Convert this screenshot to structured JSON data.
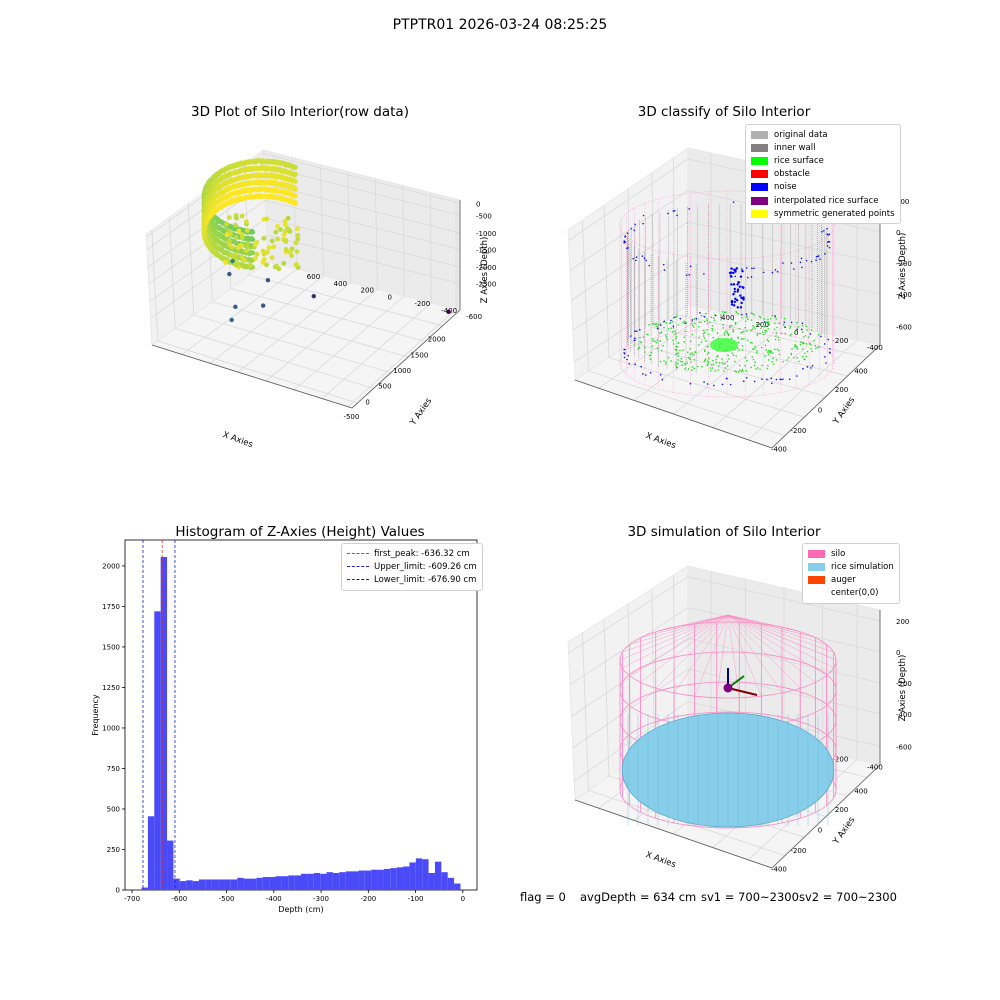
{
  "figure": {
    "title": "PTPTR01 2026-03-24 08:25:25",
    "footer": {
      "flag": "flag = 0",
      "avg_depth": "avgDepth = 634 cm",
      "sv1": "sv1 = 700~2300",
      "sv2": "sv2 = 700~2300"
    }
  },
  "chart_data": [
    {
      "type": "scatter",
      "title": "3D Plot of Silo Interior(row data)",
      "xlabel": "X Axies",
      "ylabel": "Y Axies",
      "zlabel": "Z Axies (Depth)",
      "xticks": [
        "-500",
        "0",
        "500",
        "1000",
        "1500",
        "2000"
      ],
      "yticks": [
        "-600",
        "-400",
        "-200",
        "0",
        "200",
        "400",
        "600"
      ],
      "zticks": [
        "-2500",
        "-2000",
        "-1500",
        "-1000",
        "-500",
        "0"
      ],
      "xlim": [
        -600,
        2100
      ],
      "ylim": [
        -650,
        650
      ],
      "zlim": [
        -2700,
        0
      ],
      "colormap": "viridis",
      "outliers": [
        {
          "x": -350,
          "y": 200,
          "z": -1750
        },
        {
          "x": 100,
          "y": 300,
          "z": -1900
        },
        {
          "x": 400,
          "y": 200,
          "z": -2000
        },
        {
          "x": 750,
          "y": 500,
          "z": -1500
        },
        {
          "x": 1050,
          "y": 350,
          "z": -2050
        },
        {
          "x": 850,
          "y": 550,
          "z": -1950
        },
        {
          "x": 1250,
          "y": 100,
          "z": -2350
        },
        {
          "x": 2000,
          "y": -600,
          "z": -2700
        }
      ]
    },
    {
      "type": "scatter",
      "title": "3D classify of Silo Interior",
      "xlabel": "X Axies",
      "ylabel": "Y Axies",
      "zlabel": "Z Axies (Depth)",
      "xticks": [
        "-400",
        "-200",
        "0",
        "200",
        "400"
      ],
      "yticks": [
        "-400",
        "-200",
        "0",
        "200",
        "400"
      ],
      "zticks": [
        "-600",
        "-400",
        "-200",
        "0",
        "200"
      ],
      "xlim": [
        -500,
        500
      ],
      "ylim": [
        -500,
        500
      ],
      "zlim": [
        -750,
        250
      ],
      "legend": [
        {
          "label": "original data",
          "color": "#b0b0b0"
        },
        {
          "label": "inner wall",
          "color": "#808080"
        },
        {
          "label": "rice surface",
          "color": "#00ff00"
        },
        {
          "label": "obstacle",
          "color": "#ff0000"
        },
        {
          "label": "noise",
          "color": "#0000ff"
        },
        {
          "label": "interpolated rice surface",
          "color": "#800080"
        },
        {
          "label": "symmetric generated points",
          "color": "#ffff00"
        }
      ]
    },
    {
      "type": "bar",
      "title": "Histogram of Z-Axies (Height) Values",
      "xlabel": "Depth (cm)",
      "ylabel": "Frequency",
      "xlim": [
        -715,
        30
      ],
      "ylim": [
        0,
        2160
      ],
      "xticks": [
        "-700",
        "-600",
        "-500",
        "-400",
        "-300",
        "-200",
        "-100",
        "0"
      ],
      "yticks": [
        "0",
        "250",
        "500",
        "750",
        "1000",
        "1250",
        "1500",
        "1750",
        "2000"
      ],
      "bar_color": "#4a4af8",
      "bin_start": -680,
      "bin_width": 13.5,
      "values": [
        15,
        455,
        1720,
        2055,
        305,
        70,
        55,
        60,
        55,
        65,
        65,
        65,
        65,
        65,
        65,
        75,
        70,
        70,
        75,
        80,
        80,
        85,
        85,
        90,
        90,
        100,
        100,
        105,
        100,
        110,
        105,
        110,
        115,
        115,
        120,
        120,
        125,
        125,
        130,
        135,
        140,
        145,
        170,
        195,
        190,
        105,
        175,
        110,
        75,
        40
      ],
      "lines": [
        {
          "label": "first_peak: -636.32 cm",
          "value": -636.32,
          "color": "#e03030"
        },
        {
          "label": "Upper_limit: -609.26 cm",
          "value": -609.26,
          "color": "#2020c0"
        },
        {
          "label": "Lower_limit: -676.90 cm",
          "value": -676.9,
          "color": "#2020c0"
        }
      ]
    },
    {
      "type": "scatter",
      "title": "3D simulation of Silo Interior",
      "xlabel": "X Axies",
      "ylabel": "Y Axies",
      "zlabel": "Z Axies (Depth)",
      "xticks": [
        "-400",
        "-200",
        "0",
        "200",
        "400"
      ],
      "yticks": [
        "-400",
        "-200",
        "0",
        "200",
        "400"
      ],
      "zticks": [
        "-600",
        "-400",
        "-200",
        "0",
        "200"
      ],
      "xlim": [
        -500,
        500
      ],
      "ylim": [
        -500,
        500
      ],
      "zlim": [
        -750,
        250
      ],
      "legend": [
        {
          "label": "silo",
          "color": "#ff69b4"
        },
        {
          "label": "rice simulation",
          "color": "#87ceeb"
        },
        {
          "label": "auger",
          "color": "#ff4500"
        },
        {
          "label": "center(0,0)",
          "color": "#ffffff"
        }
      ]
    }
  ]
}
